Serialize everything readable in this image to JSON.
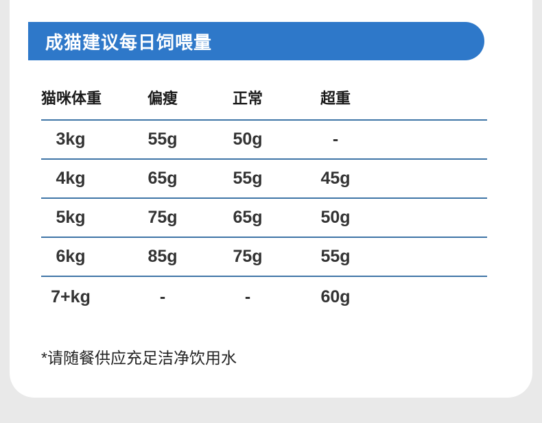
{
  "header": {
    "title": "成猫建议每日饲喂量"
  },
  "table": {
    "columns": [
      "猫咪体重",
      "偏瘦",
      "正常",
      "超重"
    ],
    "rows": [
      [
        "3kg",
        "55g",
        "50g",
        "-"
      ],
      [
        "4kg",
        "65g",
        "55g",
        "45g"
      ],
      [
        "5kg",
        "75g",
        "65g",
        "50g"
      ],
      [
        "6kg",
        "85g",
        "75g",
        "55g"
      ],
      [
        "7+kg",
        "-",
        "-",
        "60g"
      ]
    ]
  },
  "footnote": "*请随餐供应充足洁净饮用水",
  "colors": {
    "banner_blue": "#2e78c9",
    "divider_blue": "#3e74a6",
    "background_gray": "#e9e9e9",
    "card_white": "#ffffff",
    "header_text": "#1a1a1a",
    "value_text": "#333333",
    "banner_text": "#ffffff"
  },
  "chart_data": {
    "type": "table",
    "title": "成猫建议每日饲喂量",
    "columns": [
      "猫咪体重",
      "偏瘦",
      "正常",
      "超重"
    ],
    "rows": [
      [
        "3kg",
        "55g",
        "50g",
        "-"
      ],
      [
        "4kg",
        "65g",
        "55g",
        "45g"
      ],
      [
        "5kg",
        "75g",
        "65g",
        "50g"
      ],
      [
        "6kg",
        "85g",
        "75g",
        "55g"
      ],
      [
        "7+kg",
        "-",
        "-",
        "60g"
      ]
    ],
    "footnote": "*请随餐供应充足洁净饮用水",
    "units": {
      "weight": "kg",
      "feeding_amount": "g/day"
    }
  }
}
